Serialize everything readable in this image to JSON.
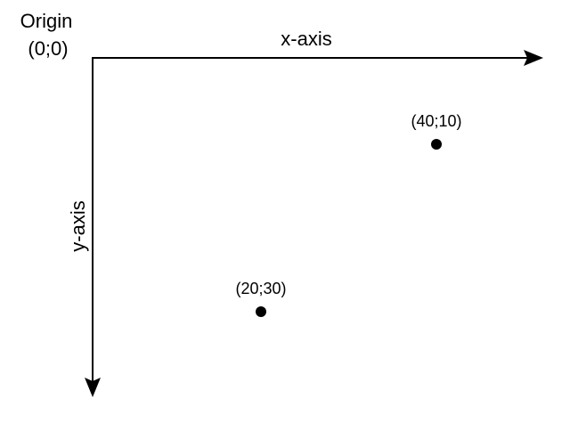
{
  "origin": {
    "title": "Origin",
    "coords": "(0;0)"
  },
  "axes": {
    "x_label": "x-axis",
    "y_label": "y-axis"
  },
  "points": [
    {
      "label": "(40;10)",
      "x": 40,
      "y": 10
    },
    {
      "label": "(20;30)",
      "x": 20,
      "y": 30
    }
  ],
  "colors": {
    "ink": "#000000",
    "background": "#ffffff"
  }
}
